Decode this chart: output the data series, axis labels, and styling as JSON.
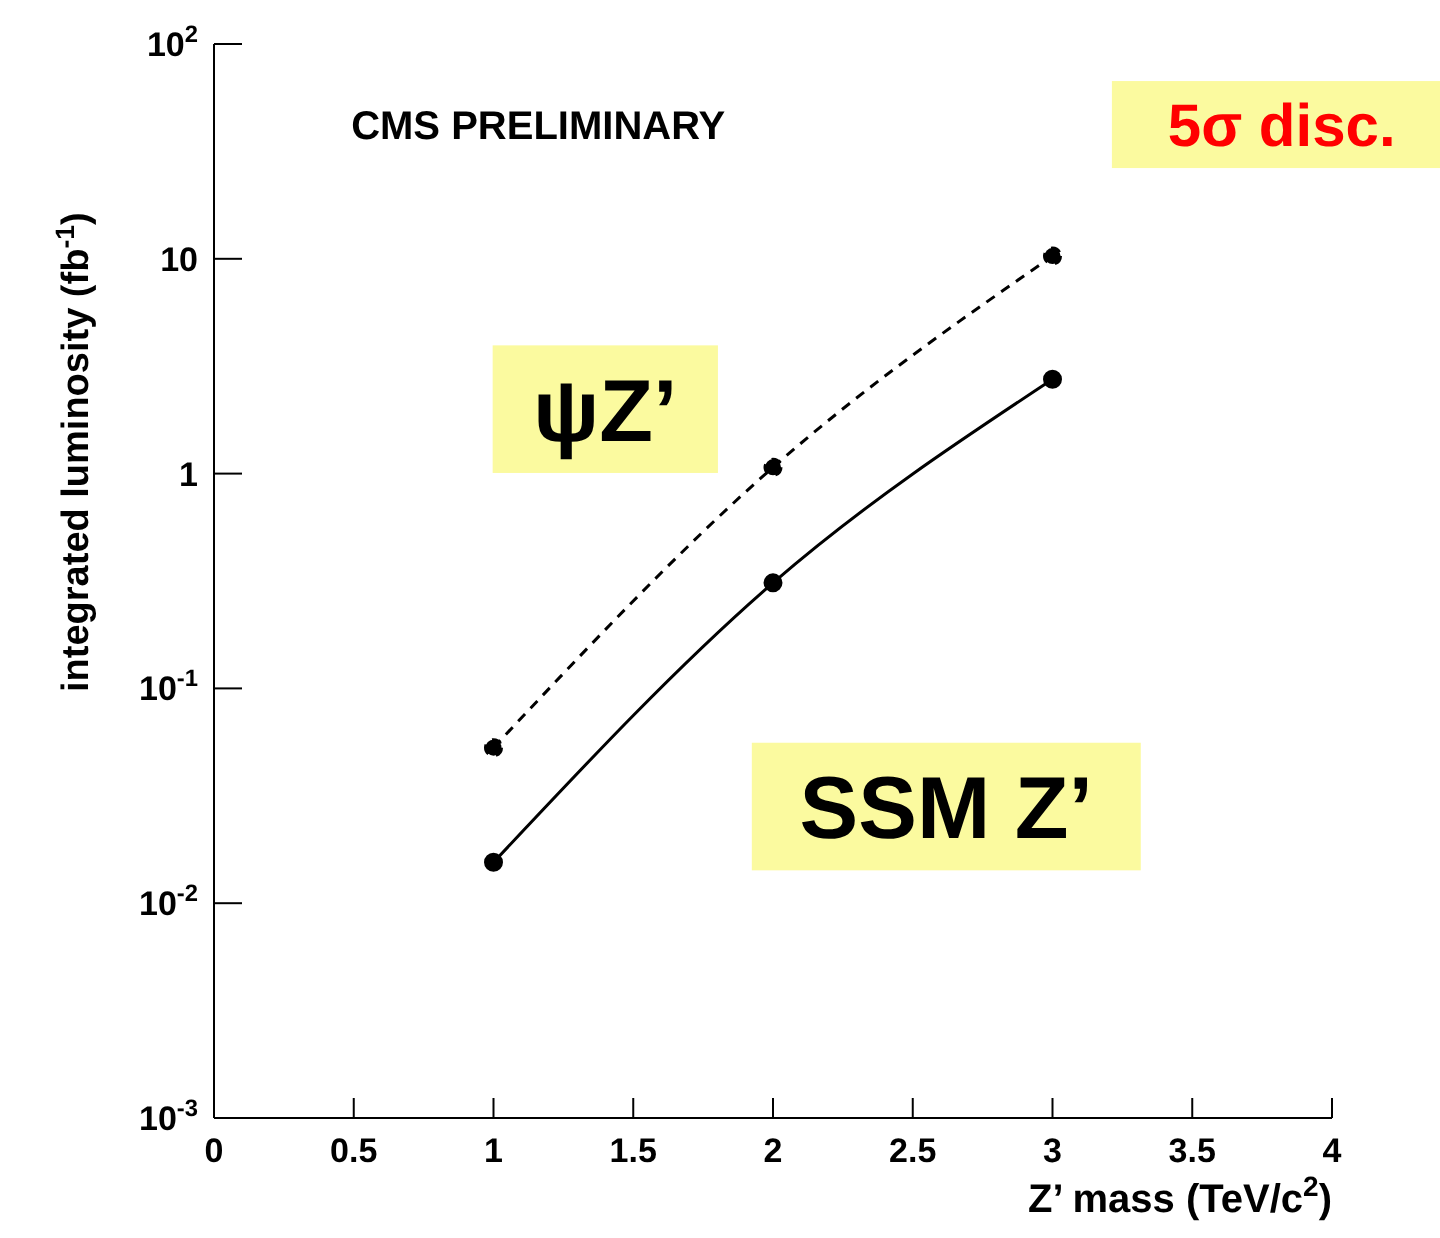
{
  "chart_data": {
    "type": "line",
    "xlabel": "Z’ mass (TeV/c$^{2}$)",
    "ylabel": "integrated luminosity (fb$^{-1}$)",
    "x": [
      1,
      2,
      3
    ],
    "series": [
      {
        "name": "ψZ’",
        "color": "#000000",
        "values": [
          0.053,
          1.07,
          10.3
        ],
        "line_style": "dashed"
      },
      {
        "name": "SSM Z’",
        "color": "#000000",
        "values": [
          0.0155,
          0.31,
          2.75
        ],
        "line_style": "solid"
      }
    ],
    "marker": "circle",
    "log": "y",
    "xlim": [
      0,
      4
    ],
    "xticks": [
      0,
      0.5,
      1,
      1.5,
      2,
      2.5,
      3,
      3.5,
      4
    ],
    "ylim": [
      0.001,
      100
    ],
    "yticks": [
      {
        "value": 0.001,
        "label": "10$^{-3}$"
      },
      {
        "value": 0.01,
        "label": "10$^{-2}$"
      },
      {
        "value": 0.1,
        "label": "10$^{-1}$"
      },
      1,
      10,
      {
        "value": 100,
        "label": "10$^{2}$"
      }
    ],
    "annotations": [
      "CMS PRELIMINARY",
      "5σ disc."
    ]
  }
}
